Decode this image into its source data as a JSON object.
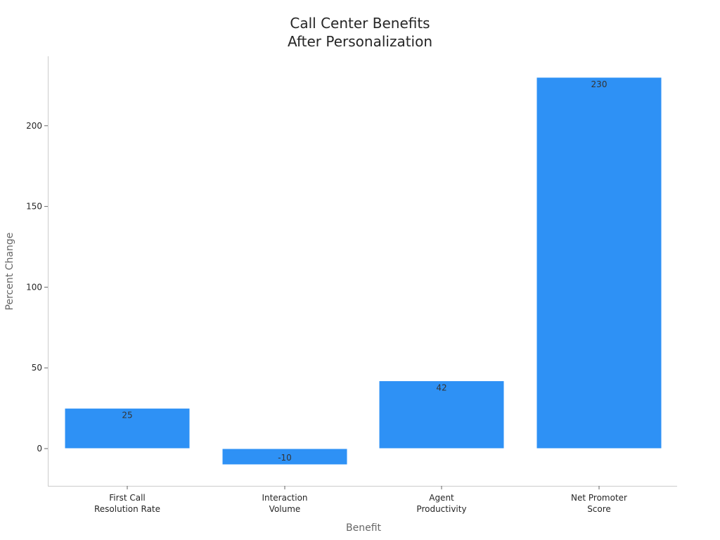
{
  "chart_data": {
    "type": "bar",
    "title": [
      "Call Center Benefits",
      "After Personalization"
    ],
    "xlabel": "Benefit",
    "ylabel": "Percent Change",
    "categories": [
      [
        "First Call",
        "Resolution Rate"
      ],
      [
        "Interaction",
        "Volume"
      ],
      [
        "Agent",
        "Productivity"
      ],
      [
        "Net Promoter",
        "Score"
      ]
    ],
    "values": [
      25,
      -10,
      42,
      230
    ],
    "data_labels": [
      "25",
      "-10",
      "42",
      "230"
    ],
    "yticks": [
      0,
      50,
      100,
      150,
      200
    ],
    "ylim": [
      -23.5,
      243.5
    ],
    "bar_color": "#2e91f5",
    "grid": false,
    "legend": "none"
  }
}
